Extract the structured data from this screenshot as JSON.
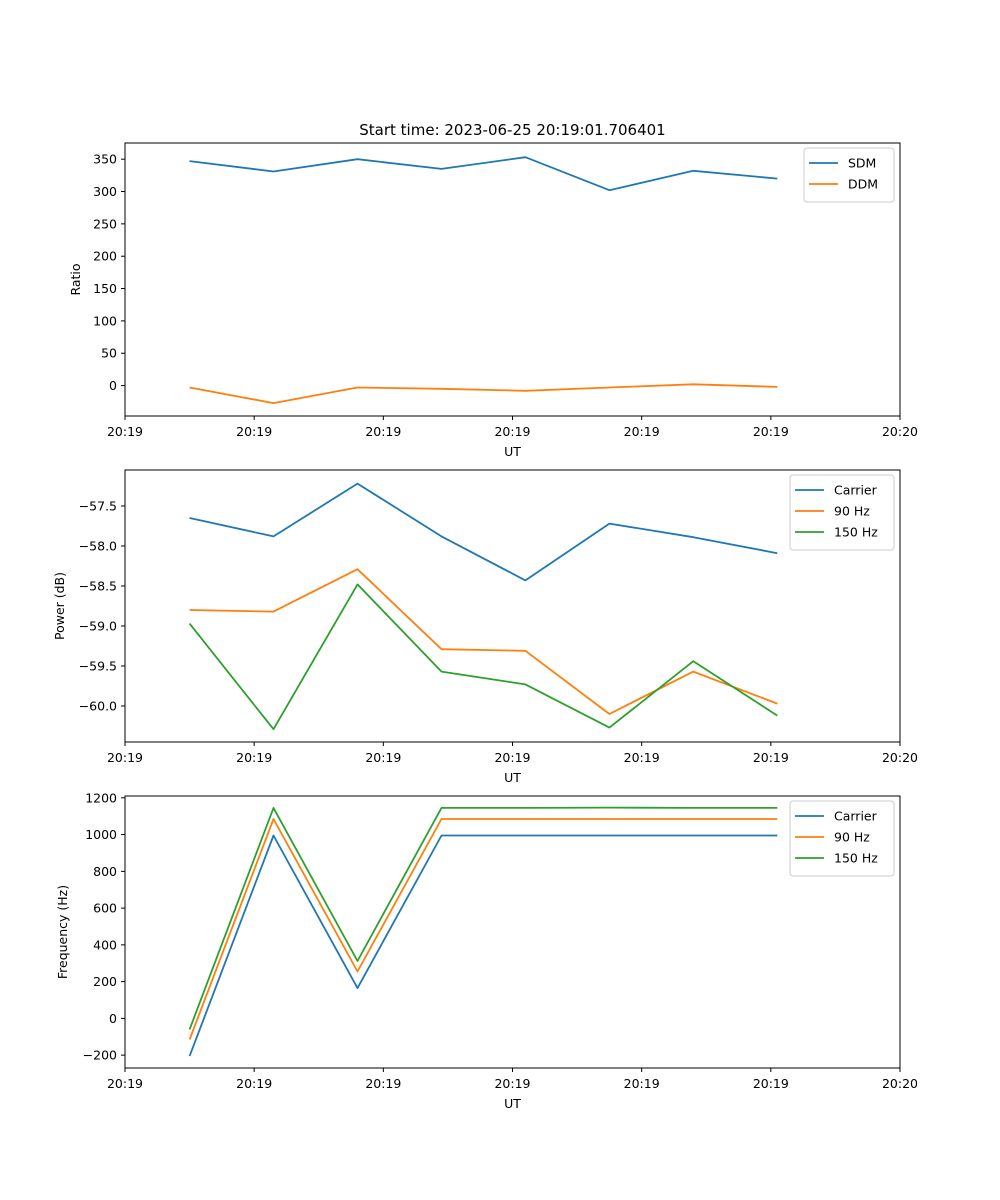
{
  "chart_data": [
    {
      "type": "line",
      "title": "Start time: 2023-06-25 20:19:01.706401",
      "xlabel": "UT",
      "ylabel": "Ratio",
      "x": [
        0.5,
        1.15,
        1.8,
        2.45,
        3.1,
        3.75,
        4.4,
        5.05
      ],
      "xlim": [
        0,
        6
      ],
      "xticks": [
        0,
        1,
        2,
        3,
        4,
        5,
        6
      ],
      "xtick_labels": [
        "20:19",
        "20:19",
        "20:19",
        "20:19",
        "20:19",
        "20:19",
        "20:20"
      ],
      "ylim": [
        -47,
        375
      ],
      "yticks": [
        0,
        50,
        100,
        150,
        200,
        250,
        300,
        350
      ],
      "ytick_labels": [
        "0",
        "50",
        "100",
        "150",
        "200",
        "250",
        "300",
        "350"
      ],
      "grid": false,
      "legend_position": "top-right",
      "series": [
        {
          "name": "SDM",
          "color": "#1f77b4",
          "values": [
            347,
            331,
            350,
            335,
            353,
            302,
            332,
            320
          ]
        },
        {
          "name": "DDM",
          "color": "#ff7f0e",
          "values": [
            -3,
            -27,
            -3,
            -5,
            -8,
            -3,
            2,
            -2
          ]
        }
      ]
    },
    {
      "type": "line",
      "title": "",
      "xlabel": "UT",
      "ylabel": "Power (dB)",
      "x": [
        0.5,
        1.15,
        1.8,
        2.45,
        3.1,
        3.75,
        4.4,
        5.05
      ],
      "xlim": [
        0,
        6
      ],
      "xticks": [
        0,
        1,
        2,
        3,
        4,
        5,
        6
      ],
      "xtick_labels": [
        "20:19",
        "20:19",
        "20:19",
        "20:19",
        "20:19",
        "20:19",
        "20:20"
      ],
      "ylim": [
        -60.45,
        -57.05
      ],
      "yticks": [
        -60.0,
        -59.5,
        -59.0,
        -58.5,
        -58.0,
        -57.5
      ],
      "ytick_labels": [
        "−60.0",
        "−59.5",
        "−59.0",
        "−58.5",
        "−58.0",
        "−57.5"
      ],
      "grid": false,
      "legend_position": "top-right",
      "series": [
        {
          "name": "Carrier",
          "color": "#1f77b4",
          "values": [
            -57.65,
            -57.88,
            -57.22,
            -57.88,
            -58.43,
            -57.72,
            -57.89,
            -58.09
          ]
        },
        {
          "name": "90 Hz",
          "color": "#ff7f0e",
          "values": [
            -58.8,
            -58.82,
            -58.29,
            -59.29,
            -59.31,
            -60.1,
            -59.57,
            -59.97
          ]
        },
        {
          "name": "150 Hz",
          "color": "#2ca02c",
          "values": [
            -58.97,
            -60.29,
            -58.48,
            -59.57,
            -59.73,
            -60.27,
            -59.44,
            -60.12
          ]
        }
      ]
    },
    {
      "type": "line",
      "title": "",
      "xlabel": "UT",
      "ylabel": "Frequency (Hz)",
      "x": [
        0.5,
        1.15,
        1.8,
        2.45,
        3.1,
        3.75,
        4.4,
        5.05
      ],
      "xlim": [
        0,
        6
      ],
      "xticks": [
        0,
        1,
        2,
        3,
        4,
        5,
        6
      ],
      "xtick_labels": [
        "20:19",
        "20:19",
        "20:19",
        "20:19",
        "20:19",
        "20:19",
        "20:20"
      ],
      "ylim": [
        -270,
        1210
      ],
      "yticks": [
        -200,
        0,
        200,
        400,
        600,
        800,
        1000,
        1200
      ],
      "ytick_labels": [
        "−200",
        "0",
        "200",
        "400",
        "600",
        "800",
        "1000",
        "1200"
      ],
      "grid": false,
      "legend_position": "top-right",
      "series": [
        {
          "name": "Carrier",
          "color": "#1f77b4",
          "values": [
            -205,
            995,
            165,
            995,
            995,
            995,
            995,
            995
          ]
        },
        {
          "name": "90 Hz",
          "color": "#ff7f0e",
          "values": [
            -115,
            1085,
            255,
            1085,
            1085,
            1085,
            1085,
            1085
          ]
        },
        {
          "name": "150 Hz",
          "color": "#2ca02c",
          "values": [
            -60,
            1145,
            312,
            1145,
            1145,
            1147,
            1145,
            1145
          ]
        }
      ]
    }
  ]
}
